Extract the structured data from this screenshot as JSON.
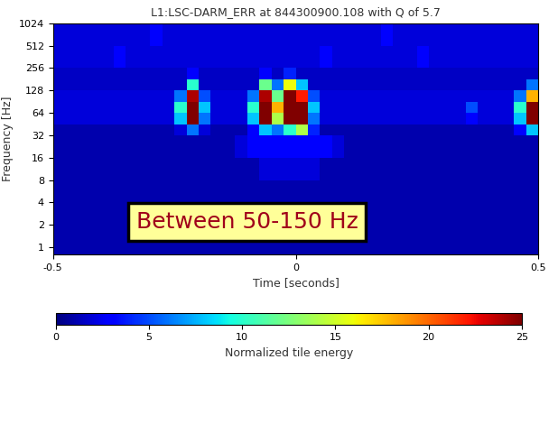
{
  "chart_data": {
    "type": "heatmap",
    "title": "L1:LSC-DARM_ERR at 844300900.108 with Q of 5.7",
    "x_label": "Time [seconds]",
    "y_label": "Frequency [Hz]",
    "annotation": "Between 50-150 Hz",
    "log": "y",
    "xlim": [
      -0.5,
      0.5
    ],
    "xticks": [
      -0.5,
      0,
      0.5
    ],
    "ylim": [
      0.8,
      1024
    ],
    "yticks": [
      1,
      2,
      4,
      8,
      16,
      32,
      64,
      128,
      256,
      512,
      1024
    ],
    "x_edges": [
      -0.5,
      -0.475,
      -0.45,
      -0.425,
      -0.4,
      -0.375,
      -0.35,
      -0.325,
      -0.3,
      -0.275,
      -0.25,
      -0.225,
      -0.2,
      -0.175,
      -0.15,
      -0.125,
      -0.1,
      -0.075,
      -0.05,
      -0.025,
      0,
      0.025,
      0.05,
      0.075,
      0.1,
      0.125,
      0.15,
      0.175,
      0.2,
      0.225,
      0.25,
      0.275,
      0.3,
      0.325,
      0.35,
      0.375,
      0.4,
      0.425,
      0.45,
      0.475,
      0.5
    ],
    "y_edges": [
      0.8,
      2,
      4,
      8,
      16,
      32,
      45,
      64,
      90,
      128,
      181,
      256,
      512,
      1024
    ],
    "cells": [
      [
        1,
        1,
        1,
        1,
        1,
        1,
        1,
        1,
        1,
        1,
        1,
        1,
        1,
        1,
        1,
        1,
        1,
        1,
        1,
        1,
        1,
        1,
        1,
        1,
        1,
        1,
        1,
        1,
        1,
        1,
        1,
        1,
        1,
        1,
        1,
        1,
        1,
        1,
        1,
        1
      ],
      [
        1,
        1,
        1,
        1,
        1,
        1,
        1,
        1,
        1,
        1,
        1,
        1,
        1,
        1,
        1,
        1,
        1,
        1,
        1,
        1,
        1,
        1,
        1,
        1,
        1,
        1,
        1,
        1,
        1,
        1,
        1,
        1,
        1,
        1,
        1,
        1,
        1,
        1,
        1,
        1
      ],
      [
        1,
        1,
        1,
        1,
        1,
        1,
        1,
        1,
        1,
        1,
        1,
        1,
        1,
        1,
        1,
        1,
        1,
        1,
        1,
        1,
        1,
        1,
        1,
        1,
        1,
        1,
        1,
        1,
        1,
        1,
        1,
        1,
        1,
        1,
        1,
        1,
        1,
        1,
        1,
        1
      ],
      [
        1,
        1,
        1,
        1,
        1,
        1,
        1,
        1,
        1,
        1,
        1,
        1,
        1,
        1,
        1,
        1,
        1,
        2,
        2,
        2,
        2,
        2,
        1,
        1,
        1,
        1,
        1,
        1,
        1,
        1,
        1,
        1,
        1,
        1,
        1,
        1,
        1,
        1,
        1,
        1
      ],
      [
        1,
        1,
        1,
        1,
        1,
        1,
        1,
        1,
        1,
        1,
        1,
        1,
        1,
        1,
        1,
        2,
        3,
        3,
        3,
        3,
        3,
        3,
        3,
        2,
        1,
        1,
        1,
        1,
        1,
        1,
        1,
        1,
        1,
        1,
        1,
        1,
        1,
        1,
        1,
        1
      ],
      [
        1,
        1,
        1,
        1,
        1,
        1,
        1,
        1,
        1,
        1,
        2,
        6,
        2,
        1,
        1,
        1,
        3,
        8,
        6,
        10,
        14,
        4,
        1,
        1,
        1,
        1,
        1,
        1,
        1,
        1,
        1,
        1,
        1,
        1,
        1,
        1,
        1,
        1,
        3,
        8
      ],
      [
        2,
        2,
        2,
        2,
        2,
        2,
        2,
        2,
        2,
        2,
        8,
        25,
        6,
        2,
        2,
        2,
        8,
        25,
        14,
        25,
        25,
        6,
        2,
        2,
        2,
        2,
        2,
        2,
        2,
        2,
        2,
        2,
        2,
        2,
        3,
        2,
        2,
        2,
        8,
        25
      ],
      [
        2,
        2,
        2,
        2,
        2,
        2,
        2,
        2,
        2,
        2,
        10,
        25,
        8,
        2,
        2,
        2,
        10,
        25,
        18,
        25,
        25,
        8,
        2,
        2,
        2,
        2,
        2,
        2,
        2,
        2,
        2,
        2,
        2,
        2,
        5,
        2,
        2,
        2,
        10,
        25
      ],
      [
        2,
        2,
        2,
        2,
        2,
        2,
        2,
        2,
        2,
        2,
        6,
        24,
        5,
        2,
        2,
        2,
        6,
        24,
        12,
        25,
        22,
        5,
        2,
        2,
        2,
        2,
        2,
        2,
        2,
        2,
        2,
        2,
        2,
        2,
        2,
        2,
        2,
        2,
        6,
        18
      ],
      [
        1.5,
        1.5,
        1.5,
        1.5,
        1.5,
        1.5,
        1.5,
        1.5,
        1.5,
        1.5,
        1.5,
        10,
        1.5,
        1.5,
        1.5,
        1.5,
        1.5,
        12,
        6,
        16,
        8,
        1.5,
        1.5,
        1.5,
        1.5,
        1.5,
        1.5,
        1.5,
        1.5,
        1.5,
        1.5,
        1.5,
        1.5,
        1.5,
        1.5,
        1.5,
        1.5,
        1.5,
        1.5,
        6
      ],
      [
        1.5,
        1.5,
        1.5,
        1.5,
        1.5,
        1.5,
        1.5,
        1.5,
        1.5,
        1.5,
        1.5,
        3,
        1.5,
        1.5,
        1.5,
        1.5,
        1.5,
        3,
        1.5,
        4,
        1.5,
        1.5,
        1.5,
        1.5,
        1.5,
        1.5,
        1.5,
        1.5,
        1.5,
        1.5,
        1.5,
        1.5,
        1.5,
        1.5,
        1.5,
        1.5,
        1.5,
        1.5,
        1.5,
        1.5
      ],
      [
        2,
        2,
        2,
        2,
        2,
        3,
        2,
        2,
        2,
        2,
        2,
        2,
        2,
        2,
        2,
        2,
        2,
        2,
        2,
        2,
        2,
        2,
        3,
        2,
        2,
        2,
        2,
        2,
        2,
        2,
        3,
        2,
        2,
        2,
        2,
        2,
        2,
        2,
        2,
        2
      ],
      [
        2,
        2,
        2,
        2,
        2,
        2,
        2,
        2,
        3,
        2,
        2,
        2,
        2,
        2,
        2,
        2,
        2,
        2,
        2,
        2,
        2,
        2,
        2,
        2,
        2,
        2,
        2,
        3,
        2,
        2,
        2,
        2,
        2,
        2,
        2,
        2,
        2,
        2,
        2,
        2
      ]
    ],
    "colorbar": {
      "label": "Normalized tile energy",
      "range": [
        0,
        25
      ],
      "ticks": [
        0,
        5,
        10,
        15,
        20,
        25
      ]
    }
  }
}
